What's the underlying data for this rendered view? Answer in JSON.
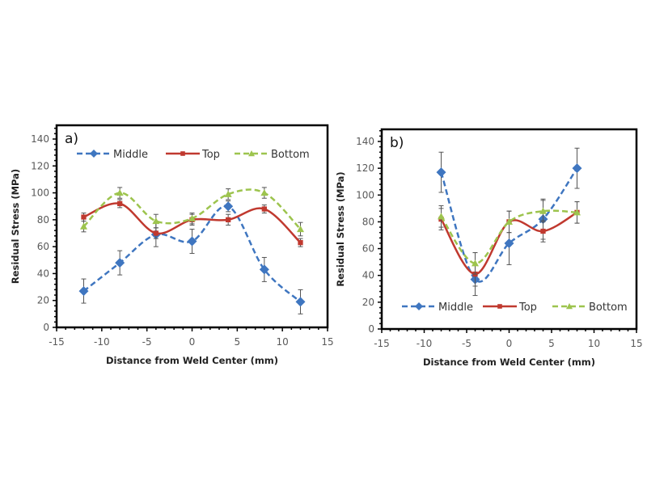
{
  "colors": {
    "Middle": "#3f76c0",
    "Top": "#c0392f",
    "Bottom": "#9dc44e"
  },
  "chart_data": [
    {
      "type": "line",
      "panel_label": "a)",
      "xlabel": "Distance from Weld Center (mm)",
      "ylabel": "Residual Stress (MPa)",
      "xlim": [
        -15,
        15
      ],
      "ylim": [
        0,
        140
      ],
      "xticks": [
        "-15",
        "-10",
        "-5",
        "0",
        "5",
        "10",
        "15"
      ],
      "yticks": [
        "0",
        "20",
        "40",
        "60",
        "80",
        "100",
        "120",
        "140"
      ],
      "legend_position": "top",
      "grid": false,
      "x": [
        -12,
        -8,
        -4,
        0,
        4,
        8,
        12
      ],
      "series": [
        {
          "name": "Middle",
          "style": "dashed",
          "marker": "diamond",
          "values": [
            27,
            48,
            69,
            64,
            90,
            43,
            19
          ],
          "errors": [
            9,
            9,
            9,
            9,
            4,
            9,
            9
          ]
        },
        {
          "name": "Top",
          "style": "solid",
          "marker": "square",
          "values": [
            82,
            92,
            70,
            80,
            80,
            88,
            63
          ],
          "errors": [
            3,
            3,
            4,
            4,
            4,
            3,
            3
          ]
        },
        {
          "name": "Bottom",
          "style": "dashed",
          "marker": "triangle",
          "values": [
            75,
            100,
            79,
            81,
            99,
            100,
            73
          ],
          "errors": [
            4,
            4,
            5,
            4,
            4,
            4,
            5
          ]
        }
      ]
    },
    {
      "type": "line",
      "panel_label": "b)",
      "xlabel": "Distance from Weld Center (mm)",
      "ylabel": "Residual Stress (MPa)",
      "xlim": [
        -15,
        15
      ],
      "ylim": [
        0,
        140
      ],
      "xticks": [
        "-15",
        "-10",
        "-5",
        "0",
        "5",
        "10",
        "15"
      ],
      "yticks": [
        "0",
        "20",
        "40",
        "60",
        "80",
        "100",
        "120",
        "140"
      ],
      "legend_position": "bottom",
      "grid": false,
      "x": [
        -8,
        -4,
        0,
        4,
        8
      ],
      "series": [
        {
          "name": "Middle",
          "style": "dashed",
          "marker": "diamond",
          "values": [
            117,
            37,
            64,
            82,
            120
          ],
          "errors": [
            15,
            5,
            16,
            15,
            15
          ]
        },
        {
          "name": "Top",
          "style": "solid",
          "marker": "square",
          "values": [
            82,
            41,
            80,
            73,
            87
          ],
          "errors": [
            8,
            16,
            8,
            8,
            8
          ]
        },
        {
          "name": "Bottom",
          "style": "dashed",
          "marker": "triangle",
          "values": [
            84,
            49,
            80,
            88,
            87
          ],
          "errors": [
            8,
            8,
            8,
            8,
            8
          ]
        }
      ]
    }
  ]
}
